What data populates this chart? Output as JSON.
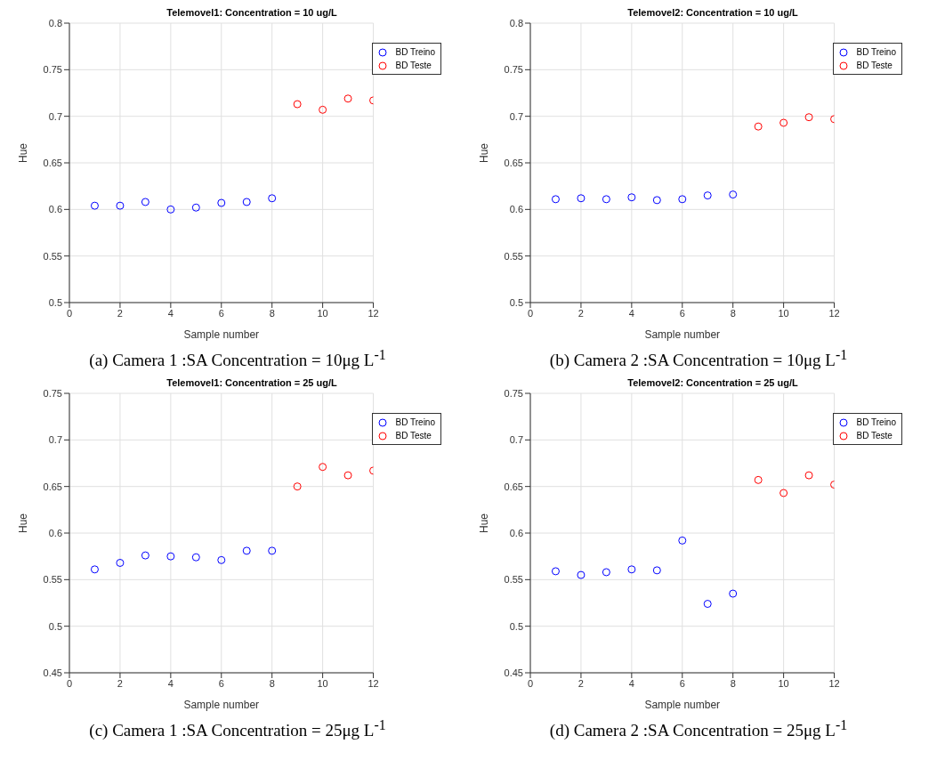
{
  "chart_data": [
    {
      "type": "scatter",
      "title": "Telemovel1: Concentration = 10 ug/L",
      "xlabel": "Sample number",
      "ylabel": "Hue",
      "xlim": [
        0,
        12
      ],
      "xticks": [
        0,
        2,
        4,
        6,
        8,
        10,
        12
      ],
      "ylim": [
        0.5,
        0.8
      ],
      "yticks": [
        0.5,
        0.55,
        0.6,
        0.65,
        0.7,
        0.75,
        0.8
      ],
      "grid": true,
      "legend": "top right",
      "marker": "circle",
      "annotations": [
        "(a) Camera 1 :SA Concentration = 10μg L$^{-1}$"
      ],
      "series": [
        {
          "name": "BD Treino",
          "color": "#0000ff",
          "x": [
            1,
            2,
            3,
            4,
            5,
            6,
            7,
            8
          ],
          "values": [
            0.604,
            0.604,
            0.608,
            0.6,
            0.602,
            0.607,
            0.608,
            0.612
          ]
        },
        {
          "name": "BD Teste",
          "color": "#ff0000",
          "x": [
            9,
            10,
            11,
            12
          ],
          "values": [
            0.713,
            0.707,
            0.719,
            0.717
          ]
        }
      ]
    },
    {
      "type": "scatter",
      "title": "Telemovel2: Concentration = 10 ug/L",
      "xlabel": "Sample number",
      "ylabel": "Hue",
      "xlim": [
        0,
        12
      ],
      "xticks": [
        0,
        2,
        4,
        6,
        8,
        10,
        12
      ],
      "ylim": [
        0.5,
        0.8
      ],
      "yticks": [
        0.5,
        0.55,
        0.6,
        0.65,
        0.7,
        0.75,
        0.8
      ],
      "grid": true,
      "legend": "top right",
      "marker": "circle",
      "annotations": [
        "(b) Camera 2 :SA Concentration = 10μg L$^{-1}$"
      ],
      "series": [
        {
          "name": "BD Treino",
          "color": "#0000ff",
          "x": [
            1,
            2,
            3,
            4,
            5,
            6,
            7,
            8
          ],
          "values": [
            0.611,
            0.612,
            0.611,
            0.613,
            0.61,
            0.611,
            0.615,
            0.616
          ]
        },
        {
          "name": "BD Teste",
          "color": "#ff0000",
          "x": [
            9,
            10,
            11,
            12
          ],
          "values": [
            0.689,
            0.693,
            0.699,
            0.697
          ]
        }
      ]
    },
    {
      "type": "scatter",
      "title": "Telemovel1: Concentration = 25 ug/L",
      "xlabel": "Sample number",
      "ylabel": "Hue",
      "xlim": [
        0,
        12
      ],
      "xticks": [
        0,
        2,
        4,
        6,
        8,
        10,
        12
      ],
      "ylim": [
        0.45,
        0.75
      ],
      "yticks": [
        0.45,
        0.5,
        0.55,
        0.6,
        0.65,
        0.7,
        0.75
      ],
      "grid": true,
      "legend": "top right",
      "marker": "circle",
      "annotations": [
        "(c) Camera 1 :SA Concentration = 25μg L$^{-1}$"
      ],
      "series": [
        {
          "name": "BD Treino",
          "color": "#0000ff",
          "x": [
            1,
            2,
            3,
            4,
            5,
            6,
            7,
            8
          ],
          "values": [
            0.561,
            0.568,
            0.576,
            0.575,
            0.574,
            0.571,
            0.581,
            0.581
          ]
        },
        {
          "name": "BD Teste",
          "color": "#ff0000",
          "x": [
            9,
            10,
            11,
            12
          ],
          "values": [
            0.65,
            0.671,
            0.662,
            0.667
          ]
        }
      ]
    },
    {
      "type": "scatter",
      "title": "Telemovel2: Concentration = 25 ug/L",
      "xlabel": "Sample number",
      "ylabel": "Hue",
      "xlim": [
        0,
        12
      ],
      "xticks": [
        0,
        2,
        4,
        6,
        8,
        10,
        12
      ],
      "ylim": [
        0.45,
        0.75
      ],
      "yticks": [
        0.45,
        0.5,
        0.55,
        0.6,
        0.65,
        0.7,
        0.75
      ],
      "grid": true,
      "legend": "top right",
      "marker": "circle",
      "annotations": [
        "(d) Camera 2 :SA Concentration = 25μg L$^{-1}$"
      ],
      "series": [
        {
          "name": "BD Treino",
          "color": "#0000ff",
          "x": [
            1,
            2,
            3,
            4,
            5,
            6,
            7,
            8
          ],
          "values": [
            0.559,
            0.555,
            0.558,
            0.561,
            0.56,
            0.592,
            0.524,
            0.535
          ]
        },
        {
          "name": "BD Teste",
          "color": "#ff0000",
          "x": [
            9,
            10,
            11,
            12
          ],
          "values": [
            0.657,
            0.643,
            0.662,
            0.652
          ]
        }
      ]
    }
  ]
}
